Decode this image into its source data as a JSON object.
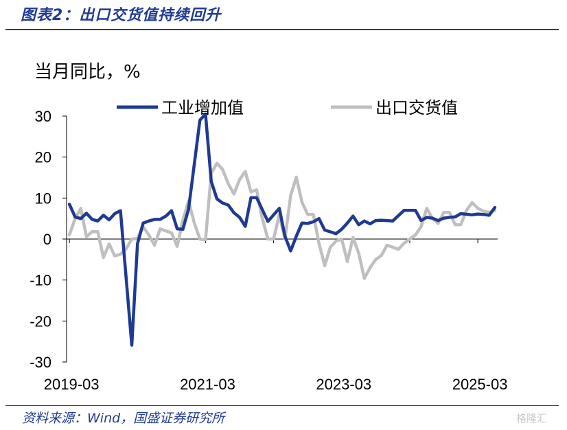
{
  "figure": {
    "title": "图表2：出口交货值持续回升",
    "source": "资料来源：Wind，国盛证券研究所",
    "watermark": "格隆汇"
  },
  "chart_data": {
    "type": "line",
    "ylabel": "当月同比，%",
    "ylim": [
      -30,
      30
    ],
    "yticks": [
      -30,
      -20,
      -10,
      0,
      10,
      20,
      30
    ],
    "xticks": [
      "2019-03",
      "2021-03",
      "2023-03",
      "2025-03"
    ],
    "legend_position": "top",
    "grid": false,
    "series": [
      {
        "name": "工业增加值",
        "color": "#1f3a93",
        "values": [
          {
            "x": "2019-03",
            "y": 8.5
          },
          {
            "x": "2019-04",
            "y": 5.4
          },
          {
            "x": "2019-05",
            "y": 5.0
          },
          {
            "x": "2019-06",
            "y": 6.3
          },
          {
            "x": "2019-07",
            "y": 4.8
          },
          {
            "x": "2019-08",
            "y": 4.4
          },
          {
            "x": "2019-09",
            "y": 5.8
          },
          {
            "x": "2019-10",
            "y": 4.7
          },
          {
            "x": "2019-11",
            "y": 6.2
          },
          {
            "x": "2019-12",
            "y": 6.9
          },
          {
            "x": "2020-02",
            "y": -25.9
          },
          {
            "x": "2020-03",
            "y": -1.1
          },
          {
            "x": "2020-04",
            "y": 3.9
          },
          {
            "x": "2020-05",
            "y": 4.4
          },
          {
            "x": "2020-06",
            "y": 4.8
          },
          {
            "x": "2020-07",
            "y": 4.8
          },
          {
            "x": "2020-08",
            "y": 5.6
          },
          {
            "x": "2020-09",
            "y": 6.9
          },
          {
            "x": "2020-10",
            "y": 2.5
          },
          {
            "x": "2020-11",
            "y": 2.4
          },
          {
            "x": "2020-12",
            "y": 7.3
          },
          {
            "x": "2021-02",
            "y": 29.0
          },
          {
            "x": "2021-03",
            "y": 30.5
          },
          {
            "x": "2021-04",
            "y": 14.1
          },
          {
            "x": "2021-05",
            "y": 9.8
          },
          {
            "x": "2021-06",
            "y": 8.8
          },
          {
            "x": "2021-07",
            "y": 8.3
          },
          {
            "x": "2021-08",
            "y": 6.4
          },
          {
            "x": "2021-09",
            "y": 5.3
          },
          {
            "x": "2021-10",
            "y": 3.1
          },
          {
            "x": "2021-11",
            "y": 10.1
          },
          {
            "x": "2021-12",
            "y": 10.1
          },
          {
            "x": "2022-02",
            "y": 4.3
          },
          {
            "x": "2022-03",
            "y": 5.9
          },
          {
            "x": "2022-04",
            "y": 7.5
          },
          {
            "x": "2022-05",
            "y": 0.7
          },
          {
            "x": "2022-06",
            "y": -2.9
          },
          {
            "x": "2022-07",
            "y": 0.7
          },
          {
            "x": "2022-08",
            "y": 3.9
          },
          {
            "x": "2022-09",
            "y": 3.8
          },
          {
            "x": "2022-10",
            "y": 4.2
          },
          {
            "x": "2022-11",
            "y": 5.0
          },
          {
            "x": "2022-12",
            "y": 2.2
          },
          {
            "x": "2023-02",
            "y": 1.3
          },
          {
            "x": "2023-03",
            "y": 2.4
          },
          {
            "x": "2023-04",
            "y": 3.9
          },
          {
            "x": "2023-05",
            "y": 5.6
          },
          {
            "x": "2023-06",
            "y": 3.5
          },
          {
            "x": "2023-07",
            "y": 4.4
          },
          {
            "x": "2023-08",
            "y": 3.7
          },
          {
            "x": "2023-09",
            "y": 4.5
          },
          {
            "x": "2023-10",
            "y": 4.6
          },
          {
            "x": "2023-11",
            "y": 4.5
          },
          {
            "x": "2023-12",
            "y": 4.4
          },
          {
            "x": "2024-02",
            "y": 7.0
          },
          {
            "x": "2024-03",
            "y": 7.0
          },
          {
            "x": "2024-04",
            "y": 7.0
          },
          {
            "x": "2024-05",
            "y": 4.5
          },
          {
            "x": "2024-06",
            "y": 5.3
          },
          {
            "x": "2024-07",
            "y": 5.1
          },
          {
            "x": "2024-08",
            "y": 4.5
          },
          {
            "x": "2024-09",
            "y": 5.1
          },
          {
            "x": "2024-10",
            "y": 5.3
          },
          {
            "x": "2024-11",
            "y": 5.4
          },
          {
            "x": "2024-12",
            "y": 6.2
          },
          {
            "x": "2025-02",
            "y": 5.9
          },
          {
            "x": "2025-03",
            "y": 6.1
          },
          {
            "x": "2025-04",
            "y": 6.0
          },
          {
            "x": "2025-05",
            "y": 5.8
          },
          {
            "x": "2025-06",
            "y": 7.7
          }
        ]
      },
      {
        "name": "出口交货值",
        "color": "#bfbfbf",
        "values": [
          {
            "x": "2019-03",
            "y": 1.0
          },
          {
            "x": "2019-04",
            "y": 5.0
          },
          {
            "x": "2019-05",
            "y": 7.5
          },
          {
            "x": "2019-06",
            "y": 0.6
          },
          {
            "x": "2019-07",
            "y": 1.8
          },
          {
            "x": "2019-08",
            "y": 1.8
          },
          {
            "x": "2019-09",
            "y": -4.5
          },
          {
            "x": "2019-10",
            "y": -1.2
          },
          {
            "x": "2019-11",
            "y": -4.1
          },
          {
            "x": "2019-12",
            "y": -3.7
          },
          {
            "x": "2020-01",
            "y": -2.4
          },
          {
            "x": "2020-02",
            "y": 0.0
          },
          {
            "x": "2020-03",
            "y": 0.1
          },
          {
            "x": "2020-04",
            "y": 3.0
          },
          {
            "x": "2020-05",
            "y": 1.0
          },
          {
            "x": "2020-06",
            "y": -1.5
          },
          {
            "x": "2020-07",
            "y": 2.5
          },
          {
            "x": "2020-08",
            "y": 2.0
          },
          {
            "x": "2020-09",
            "y": 1.5
          },
          {
            "x": "2020-10",
            "y": -1.8
          },
          {
            "x": "2020-11",
            "y": 4.6
          },
          {
            "x": "2020-12",
            "y": 9.3
          },
          {
            "x": "2021-01",
            "y": 4.0
          },
          {
            "x": "2021-02",
            "y": 0.0
          },
          {
            "x": "2021-03",
            "y": -0.2
          },
          {
            "x": "2021-04",
            "y": 16.0
          },
          {
            "x": "2021-05",
            "y": 18.5
          },
          {
            "x": "2021-06",
            "y": 17.0
          },
          {
            "x": "2021-07",
            "y": 13.5
          },
          {
            "x": "2021-08",
            "y": 11.0
          },
          {
            "x": "2021-09",
            "y": 14.5
          },
          {
            "x": "2021-10",
            "y": 16.5
          },
          {
            "x": "2021-11",
            "y": 11.5
          },
          {
            "x": "2021-12",
            "y": 12.0
          },
          {
            "x": "2022-01",
            "y": 5.0
          },
          {
            "x": "2022-02",
            "y": 0.0
          },
          {
            "x": "2022-03",
            "y": 0.0
          },
          {
            "x": "2022-04",
            "y": 6.0
          },
          {
            "x": "2022-05",
            "y": 0.0
          },
          {
            "x": "2022-06",
            "y": 10.6
          },
          {
            "x": "2022-07",
            "y": 15.1
          },
          {
            "x": "2022-08",
            "y": 9.0
          },
          {
            "x": "2022-09",
            "y": 6.0
          },
          {
            "x": "2022-10",
            "y": 6.0
          },
          {
            "x": "2022-11",
            "y": -1.0
          },
          {
            "x": "2022-12",
            "y": -6.5
          },
          {
            "x": "2023-01",
            "y": -2.0
          },
          {
            "x": "2023-02",
            "y": -0.5
          },
          {
            "x": "2023-03",
            "y": 0.0
          },
          {
            "x": "2023-04",
            "y": -5.5
          },
          {
            "x": "2023-05",
            "y": 0.4
          },
          {
            "x": "2023-06",
            "y": -3.5
          },
          {
            "x": "2023-07",
            "y": -9.6
          },
          {
            "x": "2023-08",
            "y": -7.0
          },
          {
            "x": "2023-09",
            "y": -5.0
          },
          {
            "x": "2023-10",
            "y": -4.0
          },
          {
            "x": "2023-11",
            "y": -1.5
          },
          {
            "x": "2023-12",
            "y": -2.0
          },
          {
            "x": "2024-01",
            "y": -2.5
          },
          {
            "x": "2024-02",
            "y": -1.0
          },
          {
            "x": "2024-03",
            "y": 0.0
          },
          {
            "x": "2024-04",
            "y": 1.0
          },
          {
            "x": "2024-05",
            "y": 3.0
          },
          {
            "x": "2024-06",
            "y": 7.5
          },
          {
            "x": "2024-07",
            "y": 5.0
          },
          {
            "x": "2024-08",
            "y": 3.8
          },
          {
            "x": "2024-09",
            "y": 6.5
          },
          {
            "x": "2024-10",
            "y": 6.5
          },
          {
            "x": "2024-11",
            "y": 3.5
          },
          {
            "x": "2024-12",
            "y": 3.5
          },
          {
            "x": "2025-01",
            "y": 7.0
          },
          {
            "x": "2025-02",
            "y": 8.9
          },
          {
            "x": "2025-03",
            "y": 7.5
          },
          {
            "x": "2025-04",
            "y": 6.8
          },
          {
            "x": "2025-05",
            "y": 6.5
          },
          {
            "x": "2025-06",
            "y": 7.0
          }
        ]
      }
    ]
  }
}
